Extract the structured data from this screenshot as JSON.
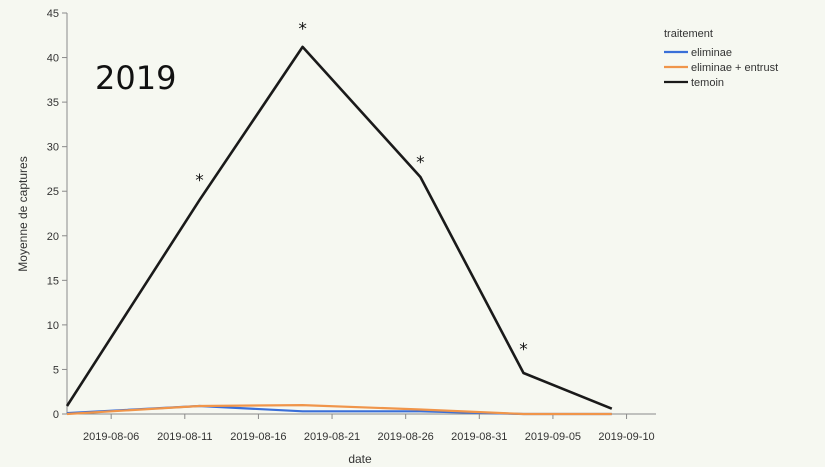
{
  "chart_data": {
    "type": "line",
    "year_label": "2019",
    "xlabel": "date",
    "ylabel": "Moyenne de captures",
    "ylim": [
      0,
      45
    ],
    "yticks": [
      0,
      5,
      10,
      15,
      20,
      25,
      30,
      35,
      40,
      45
    ],
    "xlim": [
      "2019-08-03",
      "2019-09-12"
    ],
    "xticks": [
      "2019-08-06",
      "2019-08-11",
      "2019-08-16",
      "2019-08-21",
      "2019-08-26",
      "2019-08-31",
      "2019-09-05",
      "2019-09-10"
    ],
    "legend": {
      "title": "traitement",
      "position": "top-right"
    },
    "series": [
      {
        "name": "eliminae",
        "color": "#3a6fd8",
        "x": [
          "2019-08-03",
          "2019-08-12",
          "2019-08-19",
          "2019-08-27",
          "2019-09-03",
          "2019-09-09"
        ],
        "values": [
          0.1,
          0.9,
          0.3,
          0.3,
          0.0,
          0.0
        ]
      },
      {
        "name": "eliminae + entrust",
        "color": "#f0954a",
        "x": [
          "2019-08-03",
          "2019-08-12",
          "2019-08-19",
          "2019-08-27",
          "2019-09-03",
          "2019-09-09"
        ],
        "values": [
          0.0,
          0.9,
          1.0,
          0.5,
          0.0,
          0.0
        ]
      },
      {
        "name": "temoin",
        "color": "#1a1a1a",
        "x": [
          "2019-08-03",
          "2019-08-12",
          "2019-08-19",
          "2019-08-27",
          "2019-09-03",
          "2019-09-09"
        ],
        "values": [
          0.9,
          24.0,
          41.2,
          26.6,
          4.6,
          0.6
        ]
      }
    ],
    "annotations": [
      {
        "text": "*",
        "x": "2019-08-12",
        "y": 26.5
      },
      {
        "text": "*",
        "x": "2019-08-19",
        "y": 43.5
      },
      {
        "text": "*",
        "x": "2019-08-27",
        "y": 28.5
      },
      {
        "text": "*",
        "x": "2019-09-03",
        "y": 7.5
      }
    ]
  }
}
